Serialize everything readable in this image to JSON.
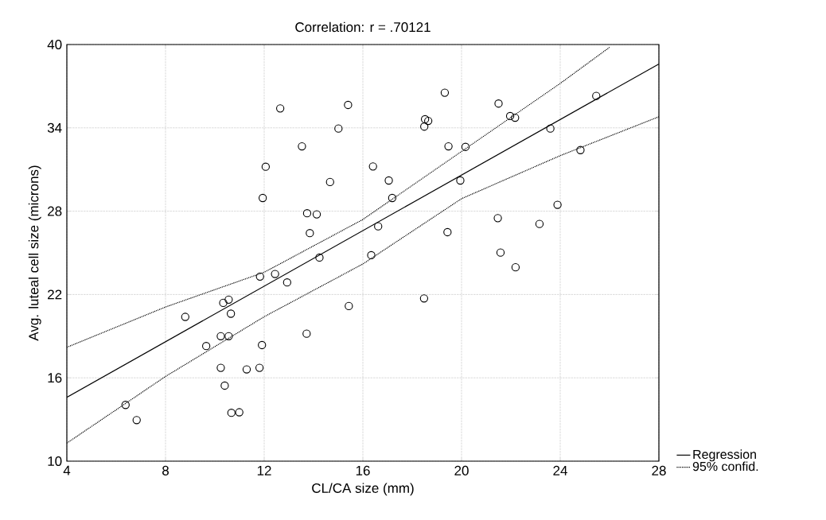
{
  "chart_data": {
    "type": "scatter",
    "title": "Correlation: r = .70121",
    "xlabel": "CL/CA size (mm)",
    "ylabel": "Avg. luteal cell size (microns)",
    "xlim": [
      4,
      28
    ],
    "ylim": [
      10,
      40
    ],
    "xticks": [
      4,
      8,
      12,
      16,
      20,
      24,
      28
    ],
    "yticks": [
      10,
      16,
      22,
      28,
      34,
      40
    ],
    "grid": true,
    "legend": "bottom right",
    "series": [
      {
        "color": "#000000",
        "marker": "circle",
        "x": [
          12.65,
          15.4,
          15.01,
          13.53,
          12.06,
          14.67,
          11.94,
          13.74,
          14.13,
          13.85,
          14.24,
          11.83,
          12.44,
          12.93,
          19.32,
          21.5,
          25.46,
          18.52,
          18.65,
          18.49,
          21.97,
          22.17,
          23.6,
          19.47,
          20.16,
          24.82,
          16.41,
          17.05,
          19.95,
          17.19,
          23.89,
          16.62,
          21.47,
          23.16,
          19.43,
          16.34,
          21.58,
          22.19,
          15.43,
          10.34,
          10.56,
          8.8,
          10.65,
          10.24,
          10.56,
          9.65,
          11.91,
          13.72,
          10.24,
          11.29,
          11.81,
          10.4,
          6.38,
          6.83,
          10.67,
          10.99,
          18.48
        ],
        "values": [
          35.4,
          35.65,
          33.95,
          32.67,
          31.2,
          30.1,
          28.95,
          27.85,
          27.77,
          26.42,
          24.66,
          23.29,
          23.48,
          22.87,
          36.53,
          35.75,
          36.3,
          34.62,
          34.5,
          34.09,
          34.85,
          34.73,
          33.95,
          32.67,
          32.63,
          32.4,
          31.22,
          30.21,
          30.21,
          28.95,
          28.46,
          26.91,
          27.5,
          27.08,
          26.49,
          24.83,
          25.02,
          23.96,
          21.17,
          21.4,
          21.63,
          20.39,
          20.62,
          19.0,
          19.0,
          18.29,
          18.36,
          19.18,
          16.72,
          16.61,
          16.72,
          15.44,
          14.05,
          12.96,
          13.48,
          13.52,
          21.72
        ]
      },
      {
        "type": "line",
        "name": "Regression",
        "color": "#000000",
        "line_style": "solid",
        "marker": "none",
        "x": [
          4,
          28
        ],
        "values": [
          14.6,
          38.6
        ]
      },
      {
        "type": "line",
        "name": "95% confid.",
        "color": "#000000",
        "line_style": "dotted",
        "marker": "none",
        "x": [
          4,
          8,
          12,
          16,
          20,
          24,
          26
        ],
        "values": [
          18.2,
          21.1,
          23.6,
          27.4,
          32.3,
          37.2,
          39.8
        ]
      },
      {
        "type": "line",
        "color": "#000000",
        "line_style": "dotted",
        "marker": "none",
        "x": [
          4,
          8,
          12,
          16,
          20,
          24,
          28
        ],
        "values": [
          11.3,
          16.1,
          20.4,
          24.2,
          28.9,
          32.0,
          34.8
        ]
      }
    ]
  }
}
